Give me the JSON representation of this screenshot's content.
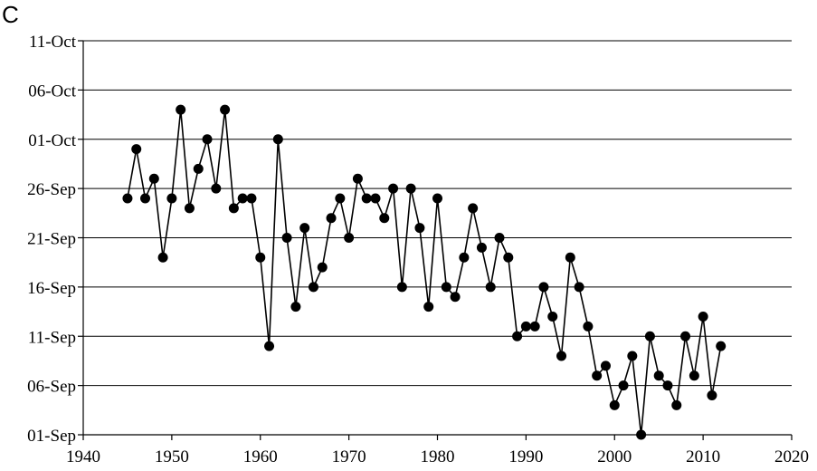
{
  "chart_data": {
    "type": "line",
    "panel_label": "C",
    "title": "",
    "xlabel": "",
    "ylabel": "",
    "xlim": [
      1940,
      2020
    ],
    "x_ticks": [
      "1940",
      "1950",
      "1960",
      "1970",
      "1980",
      "1990",
      "2000",
      "2010",
      "2020"
    ],
    "y_unit": "day-of-year (Sep 1 = 244)",
    "ylim": [
      244,
      284
    ],
    "y_ticks": [
      {
        "value": 244,
        "label": "01-Sep"
      },
      {
        "value": 249,
        "label": "06-Sep"
      },
      {
        "value": 254,
        "label": "11-Sep"
      },
      {
        "value": 259,
        "label": "16-Sep"
      },
      {
        "value": 264,
        "label": "21-Sep"
      },
      {
        "value": 269,
        "label": "26-Sep"
      },
      {
        "value": 274,
        "label": "01-Oct"
      },
      {
        "value": 279,
        "label": "06-Oct"
      },
      {
        "value": 284,
        "label": "11-Oct"
      }
    ],
    "grid": "horizontal",
    "legend": "none",
    "series": [
      {
        "x": [
          1945,
          1946,
          1947,
          1948,
          1949,
          1950,
          1951,
          1952,
          1953,
          1954,
          1955,
          1956,
          1957,
          1958,
          1959,
          1960,
          1961,
          1962,
          1963,
          1964,
          1965,
          1966,
          1967,
          1968,
          1969,
          1970,
          1971,
          1972,
          1973,
          1974,
          1975,
          1976,
          1977,
          1978,
          1979,
          1980,
          1981,
          1982,
          1983,
          1984,
          1985,
          1986,
          1987,
          1988,
          1989,
          1990,
          1991,
          1992,
          1993,
          1994,
          1995,
          1996,
          1997,
          1998,
          1999,
          2000,
          2001,
          2002,
          2003,
          2004,
          2005,
          2006,
          2007,
          2008,
          2009,
          2010,
          2011,
          2012
        ],
        "values": [
          268,
          273,
          268,
          270,
          262,
          268,
          277,
          267,
          271,
          274,
          269,
          277,
          267,
          268,
          268,
          262,
          253,
          274,
          264,
          257,
          265,
          259,
          261,
          266,
          268,
          264,
          270,
          268,
          268,
          266,
          269,
          259,
          269,
          265,
          257,
          268,
          259,
          258,
          262,
          267,
          263,
          259,
          264,
          262,
          254,
          255,
          255,
          259,
          256,
          252,
          262,
          259,
          255,
          250,
          251,
          247,
          249,
          252,
          244,
          254,
          250,
          249,
          247,
          254,
          250,
          256,
          248,
          253
        ]
      }
    ]
  }
}
